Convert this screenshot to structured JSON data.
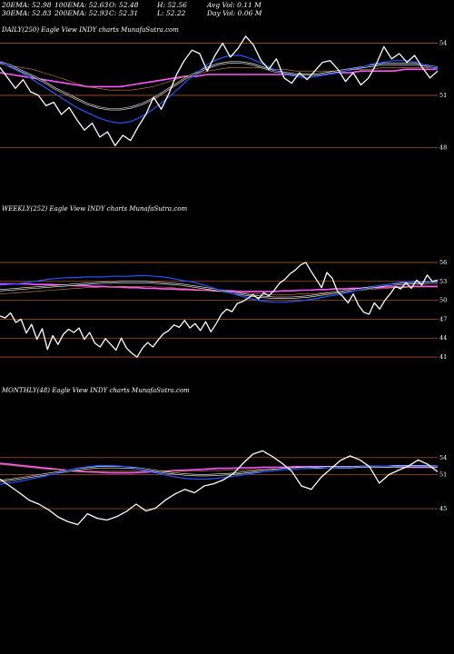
{
  "header": {
    "col1": [
      "20EMA: 52.98",
      "30EMA: 52.83"
    ],
    "col2": [
      "100EMA: 52.63",
      "200EMA: 52.93"
    ],
    "col3": [
      "O: 52.48",
      "C: 52.31"
    ],
    "col4": [
      "H: 52.56",
      "L: 52.22"
    ],
    "col5": [
      "Avg Vol: 0.11 M",
      "Day Vol: 0.06 M"
    ]
  },
  "colors": {
    "background": "#000000",
    "price": "#ffffff",
    "ema_fast": "#2255ff",
    "ema_slow": "#ff55ff",
    "ema_mid": "#ffffff",
    "ema_long": "#cc8844",
    "gridline": "#aa5522"
  },
  "chart_data": [
    {
      "type": "line",
      "title": "DAILY(250) Eagle  View  INDY charts MunafaSutra.com",
      "ylim": [
        47.6,
        54.5
      ],
      "yticks": [
        "54",
        "51",
        "48"
      ],
      "ytick_values": [
        54,
        51,
        48
      ],
      "gridlines": [
        54,
        51,
        48
      ],
      "series": [
        {
          "values": [
            52.6,
            52.0,
            51.4,
            51.9,
            51.2,
            51.0,
            50.4,
            50.6,
            49.9,
            50.3,
            49.6,
            49.0,
            49.4,
            48.6,
            48.9,
            48.1,
            48.7,
            48.4,
            49.2,
            49.9,
            50.9,
            50.2,
            51.1,
            52.2,
            53.0,
            53.6,
            53.4,
            52.4,
            53.3,
            54.0,
            53.2,
            53.7,
            54.4,
            53.9,
            53.0,
            52.5,
            53.1,
            52.0,
            51.7,
            52.3,
            51.9,
            52.4,
            52.9,
            53.0,
            52.5,
            51.8,
            52.3,
            51.6,
            52.0,
            52.8,
            53.8,
            53.1,
            53.4,
            52.9,
            53.3,
            52.6,
            52.0,
            52.4
          ]
        },
        {
          "values": [
            52.9,
            52.6,
            52.3,
            51.9,
            51.5,
            51.1,
            50.7,
            50.3,
            50.0,
            49.7,
            49.5,
            49.4,
            49.5,
            49.8,
            50.2,
            50.7,
            51.2,
            51.8,
            52.3,
            52.8,
            53.1,
            53.3,
            53.3,
            53.1,
            52.8,
            52.5,
            52.2,
            52.1,
            52.0,
            52.1,
            52.2,
            52.3,
            52.5,
            52.6,
            52.8,
            52.9,
            53.0,
            53.0,
            52.9,
            52.7,
            52.5
          ]
        },
        {
          "values": [
            52.9,
            52.7,
            52.4,
            52.1,
            51.8,
            51.4,
            51.1,
            50.8,
            50.5,
            50.3,
            50.2,
            50.2,
            50.3,
            50.5,
            50.8,
            51.2,
            51.6,
            52.0,
            52.3,
            52.6,
            52.8,
            52.9,
            52.9,
            52.8,
            52.6,
            52.4,
            52.3,
            52.2,
            52.2,
            52.2,
            52.3,
            52.4,
            52.5,
            52.6,
            52.7,
            52.8,
            52.8,
            52.8,
            52.8,
            52.7,
            52.6
          ]
        },
        {
          "values": [
            52.8,
            52.7,
            52.6,
            52.5,
            52.3,
            52.1,
            51.9,
            51.7,
            51.5,
            51.4,
            51.3,
            51.3,
            51.3,
            51.4,
            51.5,
            51.7,
            51.9,
            52.1,
            52.2,
            52.4,
            52.5,
            52.6,
            52.6,
            52.6,
            52.6,
            52.5,
            52.5,
            52.4,
            52.4,
            52.4,
            52.4,
            52.4,
            52.5,
            52.5,
            52.5,
            52.6,
            52.6,
            52.6,
            52.6,
            52.6,
            52.6
          ]
        },
        {
          "values": [
            52.3,
            52.2,
            52.1,
            52.0,
            51.9,
            51.8,
            51.7,
            51.6,
            51.5,
            51.5,
            51.5,
            51.5,
            51.6,
            51.7,
            51.8,
            51.9,
            52.0,
            52.1,
            52.1,
            52.2,
            52.2,
            52.2,
            52.2,
            52.2,
            52.2,
            52.2,
            52.2,
            52.2,
            52.2,
            52.2,
            52.3,
            52.3,
            52.3,
            52.4,
            52.4,
            52.4,
            52.4,
            52.5,
            52.5,
            52.5,
            52.5
          ]
        }
      ]
    },
    {
      "type": "line",
      "title": "WEEKLY(252) Eagle  View  INDY charts MunafaSutra.com",
      "ylim": [
        40,
        57
      ],
      "yticks": [
        "56",
        "53",
        "50",
        "47",
        "44",
        "41"
      ],
      "ytick_values": [
        56,
        53,
        50,
        47,
        44,
        41
      ],
      "gridlines": [
        56,
        53,
        50,
        47,
        44,
        41
      ],
      "series": [
        {
          "values": [
            47.5,
            47.2,
            48.0,
            46.5,
            47.0,
            44.8,
            46.2,
            43.8,
            45.5,
            42.2,
            44.4,
            43.0,
            44.6,
            45.4,
            44.9,
            45.6,
            43.8,
            44.9,
            43.2,
            42.6,
            43.9,
            43.0,
            42.1,
            44.0,
            42.4,
            41.6,
            41.0,
            42.4,
            43.3,
            42.6,
            43.7,
            44.7,
            45.2,
            46.1,
            45.7,
            46.8,
            45.6,
            46.3,
            45.2,
            46.6,
            45.0,
            46.3,
            47.8,
            48.6,
            48.2,
            49.5,
            49.8,
            50.3,
            50.9,
            50.2,
            51.2,
            50.7,
            51.6,
            52.7,
            53.3,
            54.2,
            54.8,
            55.6,
            56.0,
            54.6,
            53.3,
            52.0,
            54.4,
            53.5,
            51.4,
            50.6,
            49.6,
            51.0,
            49.2,
            48.1,
            47.8,
            49.6,
            48.6,
            50.0,
            51.0,
            52.2,
            51.8,
            52.8,
            51.9,
            53.2,
            52.4,
            54.0,
            53.0,
            53.2
          ]
        },
        {
          "values": [
            52.4,
            52.5,
            52.6,
            52.8,
            53.0,
            53.2,
            53.4,
            53.5,
            53.6,
            53.6,
            53.7,
            53.7,
            53.7,
            53.8,
            53.8,
            53.8,
            53.9,
            53.9,
            53.8,
            53.7,
            53.5,
            53.2,
            53.0,
            52.7,
            52.3,
            51.9,
            51.5,
            51.1,
            50.7,
            50.3,
            50.0,
            49.8,
            49.7,
            49.7,
            49.8,
            49.9,
            50.1,
            50.3,
            50.6,
            50.8,
            51.1,
            51.4,
            51.7,
            52.0,
            52.3,
            52.5,
            52.7,
            52.9,
            53.0,
            53.0,
            53.0,
            53.0
          ]
        },
        {
          "values": [
            51.6,
            51.7,
            51.8,
            51.9,
            52.0,
            52.1,
            52.2,
            52.3,
            52.4,
            52.5,
            52.6,
            52.7,
            52.8,
            52.8,
            52.9,
            52.9,
            52.9,
            52.9,
            52.8,
            52.7,
            52.6,
            52.5,
            52.3,
            52.1,
            51.9,
            51.7,
            51.5,
            51.2,
            51.0,
            50.8,
            50.6,
            50.5,
            50.4,
            50.4,
            50.4,
            50.5,
            50.6,
            50.8,
            51.0,
            51.2,
            51.4,
            51.6,
            51.8,
            52.0,
            52.2,
            52.4,
            52.5,
            52.6,
            52.7,
            52.7,
            52.8,
            52.8
          ]
        },
        {
          "values": [
            51.0,
            51.1,
            51.2,
            51.3,
            51.4,
            51.5,
            51.6,
            51.7,
            51.8,
            51.9,
            52.0,
            52.0,
            52.1,
            52.1,
            52.2,
            52.2,
            52.2,
            52.2,
            52.1,
            52.1,
            52.0,
            51.9,
            51.8,
            51.7,
            51.6,
            51.5,
            51.4,
            51.3,
            51.2,
            51.1,
            51.0,
            50.9,
            50.9,
            50.9,
            50.9,
            51.0,
            51.0,
            51.1,
            51.2,
            51.3,
            51.4,
            51.5,
            51.6,
            51.7,
            51.8,
            51.9,
            52.0,
            52.0,
            52.1,
            52.1,
            52.1,
            52.1
          ]
        },
        {
          "values": [
            52.6,
            52.6,
            52.6,
            52.6,
            52.5,
            52.5,
            52.5,
            52.4,
            52.4,
            52.3,
            52.3,
            52.2,
            52.2,
            52.1,
            52.1,
            52.0,
            52.0,
            51.9,
            51.9,
            51.8,
            51.8,
            51.7,
            51.7,
            51.6,
            51.6,
            51.5,
            51.5,
            51.5,
            51.4,
            51.4,
            51.4,
            51.4,
            51.4,
            51.5,
            51.5,
            51.6,
            51.6,
            51.7,
            51.7,
            51.8,
            51.8,
            51.9,
            51.9,
            52.0,
            52.0,
            52.1,
            52.1,
            52.1,
            52.2,
            52.2,
            52.2,
            52.2
          ]
        }
      ]
    },
    {
      "type": "line",
      "title": "MONTHLY(48) Eagle  View  INDY charts MunafaSutra.com",
      "ylim": [
        41,
        57
      ],
      "yticks": [
        "54",
        "51",
        "45"
      ],
      "ytick_values": [
        54,
        51,
        45
      ],
      "gridlines": [
        54,
        51,
        45
      ],
      "series": [
        {
          "values": [
            50.2,
            49.0,
            47.8,
            46.5,
            45.8,
            44.8,
            43.5,
            42.7,
            42.2,
            44.1,
            43.3,
            43.0,
            43.6,
            44.5,
            45.8,
            44.6,
            45.1,
            46.5,
            47.6,
            48.4,
            47.8,
            49.0,
            49.4,
            50.1,
            51.2,
            53.0,
            54.6,
            55.2,
            54.2,
            53.0,
            51.6,
            49.0,
            48.4,
            50.5,
            52.0,
            53.5,
            54.3,
            53.6,
            52.4,
            49.5,
            51.0,
            51.8,
            52.5,
            53.6,
            52.8,
            51.5
          ]
        },
        {
          "values": [
            49.3,
            49.6,
            49.9,
            50.3,
            50.7,
            51.2,
            51.7,
            52.1,
            52.4,
            52.6,
            52.6,
            52.5,
            52.2,
            51.8,
            51.4,
            51.0,
            50.6,
            50.3,
            50.2,
            50.2,
            50.4,
            50.6,
            50.9,
            51.2,
            51.5,
            51.7,
            51.9,
            52.0,
            52.1,
            52.2,
            52.2,
            52.3,
            52.3,
            52.4,
            52.4,
            52.5,
            52.5,
            52.5,
            52.5,
            52.5,
            52.4
          ]
        },
        {
          "values": [
            49.9,
            50.1,
            50.4,
            50.7,
            51.0,
            51.3,
            51.6,
            51.9,
            52.1,
            52.3,
            52.3,
            52.3,
            52.2,
            52.0,
            51.7,
            51.4,
            51.2,
            51.0,
            50.9,
            50.9,
            51.0,
            51.1,
            51.3,
            51.5,
            51.7,
            51.8,
            52.0,
            52.1,
            52.2,
            52.2,
            52.3,
            52.3,
            52.3,
            52.4,
            52.4,
            52.4,
            52.5,
            52.5,
            52.5,
            52.5,
            52.4
          ]
        },
        {
          "values": [
            52.8,
            52.6,
            52.4,
            52.2,
            52.0,
            51.9,
            51.8,
            51.7,
            51.6,
            51.6,
            51.6,
            51.6,
            51.6,
            51.6,
            51.6,
            51.6,
            51.6,
            51.6,
            51.6,
            51.7,
            51.7,
            51.8,
            51.8,
            51.9,
            51.9,
            52.0,
            52.0,
            52.1,
            52.1,
            52.2,
            52.2,
            52.2,
            52.3,
            52.3,
            52.3,
            52.3,
            52.3,
            52.3,
            52.3,
            52.3,
            52.3
          ]
        },
        {
          "values": [
            53.0,
            52.8,
            52.6,
            52.4,
            52.2,
            52.0,
            51.8,
            51.6,
            51.5,
            51.4,
            51.3,
            51.3,
            51.3,
            51.4,
            51.5,
            51.6,
            51.7,
            51.8,
            51.9,
            52.0,
            52.1,
            52.1,
            52.2,
            52.2,
            52.3,
            52.3,
            52.3,
            52.4,
            52.4,
            52.4,
            52.4,
            52.4,
            52.4,
            52.4,
            52.4,
            52.4,
            52.4,
            52.3,
            52.3,
            52.3,
            52.3
          ]
        }
      ]
    }
  ]
}
